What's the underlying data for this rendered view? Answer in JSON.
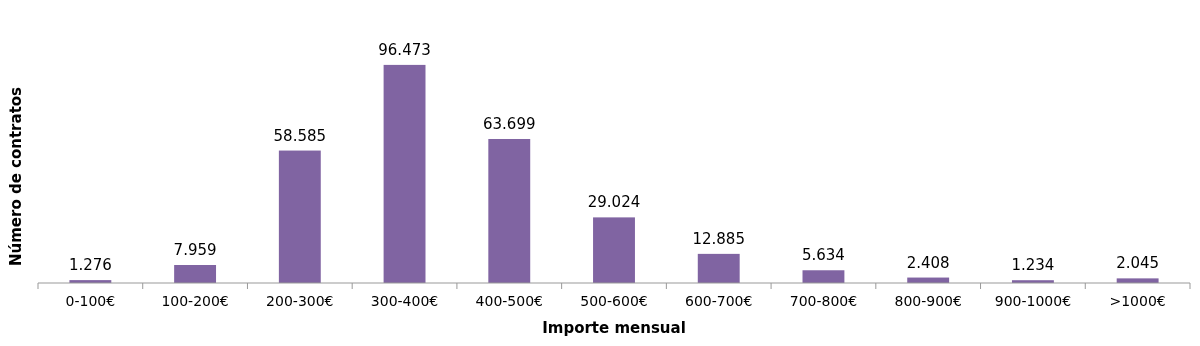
{
  "chart_data": {
    "type": "bar",
    "xlabel": "Importe mensual",
    "ylabel": "Número de contratos",
    "categories": [
      "0-100€",
      "100-200€",
      "200-300€",
      "300-400€",
      "400-500€",
      "500-600€",
      "600-700€",
      "700-800€",
      "800-900€",
      "900-1000€",
      ">1000€"
    ],
    "values": [
      1276,
      7959,
      58585,
      96473,
      63699,
      29024,
      12885,
      5634,
      2408,
      1234,
      2045
    ],
    "value_labels": [
      "1.276",
      "7.959",
      "58.585",
      "96.473",
      "63.699",
      "29.024",
      "12.885",
      "5.634",
      "2.408",
      "1.234",
      "2.045"
    ],
    "color": "#8064a2"
  }
}
